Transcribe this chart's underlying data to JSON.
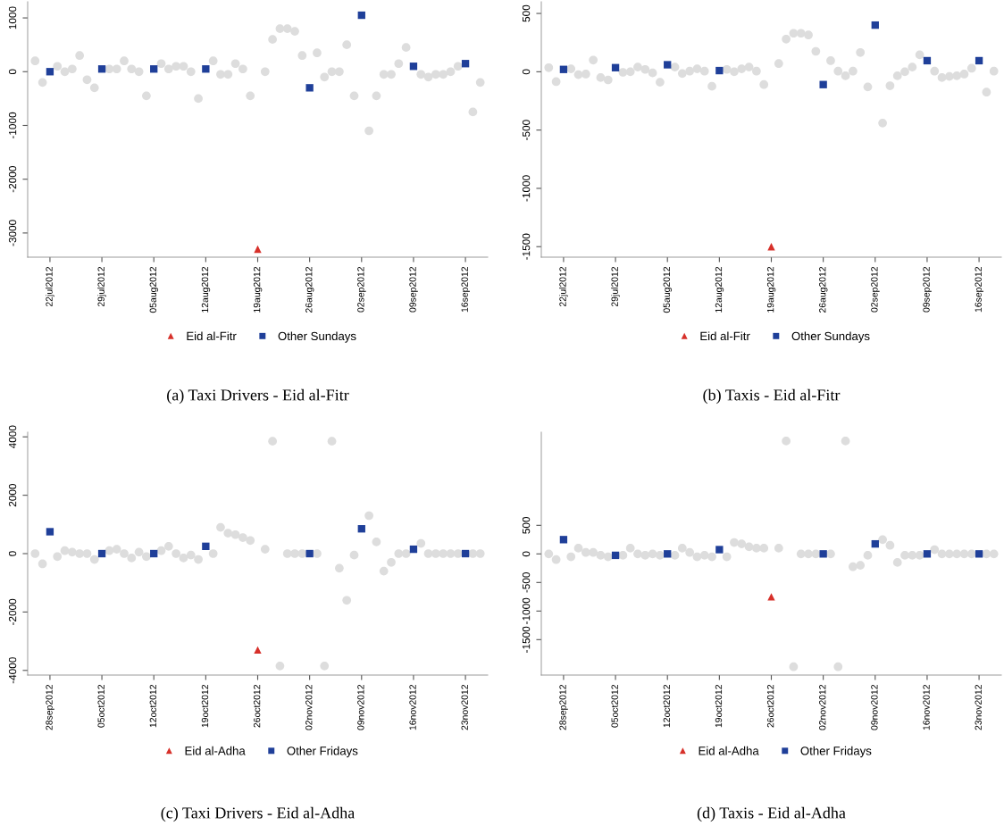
{
  "chart_data": [
    {
      "type": "scatter",
      "title": "(a) Taxi Drivers - Eid al-Fitr",
      "legend": "bottom",
      "xlim": [
        "2012-07-19",
        "2012-09-19"
      ],
      "ylim": [
        -3450,
        1300
      ],
      "xticks": [
        {
          "value": "2012-07-22",
          "label": "22jul2012"
        },
        {
          "value": "2012-07-29",
          "label": "29jul2012"
        },
        {
          "value": "2012-08-05",
          "label": "05aug2012"
        },
        {
          "value": "2012-08-12",
          "label": "12aug2012"
        },
        {
          "value": "2012-08-19",
          "label": "19aug2012"
        },
        {
          "value": "2012-08-26",
          "label": "26aug2012"
        },
        {
          "value": "2012-09-02",
          "label": "02sep2012"
        },
        {
          "value": "2012-09-09",
          "label": "09sep2012"
        },
        {
          "value": "2012-09-16",
          "label": "16sep2012"
        }
      ],
      "yticks": [
        -3000,
        -2000,
        -1000,
        0,
        1000
      ],
      "series": [
        {
          "color": "#dddddd",
          "marker": "circle",
          "x": [
            "2012-07-20",
            "2012-07-21",
            "2012-07-23",
            "2012-07-24",
            "2012-07-25",
            "2012-07-26",
            "2012-07-27",
            "2012-07-28",
            "2012-07-30",
            "2012-07-31",
            "2012-08-01",
            "2012-08-02",
            "2012-08-03",
            "2012-08-04",
            "2012-08-06",
            "2012-08-07",
            "2012-08-08",
            "2012-08-09",
            "2012-08-10",
            "2012-08-11",
            "2012-08-13",
            "2012-08-14",
            "2012-08-15",
            "2012-08-16",
            "2012-08-17",
            "2012-08-18",
            "2012-08-20",
            "2012-08-21",
            "2012-08-22",
            "2012-08-23",
            "2012-08-24",
            "2012-08-25",
            "2012-08-27",
            "2012-08-28",
            "2012-08-29",
            "2012-08-30",
            "2012-08-31",
            "2012-09-01",
            "2012-09-03",
            "2012-09-04",
            "2012-09-05",
            "2012-09-06",
            "2012-09-07",
            "2012-09-08",
            "2012-09-10",
            "2012-09-11",
            "2012-09-12",
            "2012-09-13",
            "2012-09-14",
            "2012-09-15",
            "2012-09-17",
            "2012-09-18"
          ],
          "values": [
            200,
            -200,
            100,
            0,
            50,
            300,
            -150,
            -300,
            50,
            50,
            200,
            50,
            0,
            -450,
            150,
            50,
            100,
            100,
            0,
            -500,
            200,
            -50,
            -50,
            150,
            50,
            -450,
            0,
            600,
            800,
            800,
            750,
            300,
            350,
            -100,
            0,
            0,
            500,
            -450,
            -1100,
            -450,
            -50,
            -50,
            150,
            450,
            -50,
            -100,
            -50,
            -50,
            0,
            100,
            -750,
            -200
          ]
        },
        {
          "name": "Eid al-Fitr",
          "color": "#d7302a",
          "marker": "triangle",
          "x": [
            "2012-08-19"
          ],
          "values": [
            -3300
          ]
        },
        {
          "name": "Other Sundays",
          "color": "#1f3f99",
          "marker": "square",
          "x": [
            "2012-07-22",
            "2012-07-29",
            "2012-08-05",
            "2012-08-12",
            "2012-08-26",
            "2012-09-02",
            "2012-09-09",
            "2012-09-16"
          ],
          "values": [
            0,
            50,
            50,
            50,
            -300,
            1050,
            100,
            150
          ]
        }
      ]
    },
    {
      "type": "scatter",
      "title": "(b) Taxis - Eid al-Fitr",
      "legend": "bottom",
      "xlim": [
        "2012-07-19",
        "2012-09-19"
      ],
      "ylim": [
        -1590,
        600
      ],
      "xticks": [
        {
          "value": "2012-07-22",
          "label": "22jul2012"
        },
        {
          "value": "2012-07-29",
          "label": "29jul2012"
        },
        {
          "value": "2012-08-05",
          "label": "05aug2012"
        },
        {
          "value": "2012-08-12",
          "label": "12aug2012"
        },
        {
          "value": "2012-08-19",
          "label": "19aug2012"
        },
        {
          "value": "2012-08-26",
          "label": "26aug2012"
        },
        {
          "value": "2012-09-02",
          "label": "02sep2012"
        },
        {
          "value": "2012-09-09",
          "label": "09sep2012"
        },
        {
          "value": "2012-09-16",
          "label": "16sep2012"
        }
      ],
      "yticks": [
        -1500,
        -1000,
        -500,
        0,
        500
      ],
      "series": [
        {
          "color": "#dddddd",
          "marker": "circle",
          "x": [
            "2012-07-20",
            "2012-07-21",
            "2012-07-23",
            "2012-07-24",
            "2012-07-25",
            "2012-07-26",
            "2012-07-27",
            "2012-07-28",
            "2012-07-30",
            "2012-07-31",
            "2012-08-01",
            "2012-08-02",
            "2012-08-03",
            "2012-08-04",
            "2012-08-06",
            "2012-08-07",
            "2012-08-08",
            "2012-08-09",
            "2012-08-10",
            "2012-08-11",
            "2012-08-13",
            "2012-08-14",
            "2012-08-15",
            "2012-08-16",
            "2012-08-17",
            "2012-08-18",
            "2012-08-20",
            "2012-08-21",
            "2012-08-22",
            "2012-08-23",
            "2012-08-24",
            "2012-08-25",
            "2012-08-27",
            "2012-08-28",
            "2012-08-29",
            "2012-08-30",
            "2012-08-31",
            "2012-09-01",
            "2012-09-03",
            "2012-09-04",
            "2012-09-05",
            "2012-09-06",
            "2012-09-07",
            "2012-09-08",
            "2012-09-10",
            "2012-09-11",
            "2012-09-12",
            "2012-09-13",
            "2012-09-14",
            "2012-09-15",
            "2012-09-17",
            "2012-09-18"
          ],
          "values": [
            35,
            -85,
            25,
            -25,
            -20,
            100,
            -50,
            -70,
            -5,
            0,
            40,
            20,
            -10,
            -90,
            40,
            -15,
            5,
            25,
            5,
            -125,
            20,
            0,
            25,
            40,
            5,
            -110,
            70,
            280,
            330,
            330,
            315,
            175,
            95,
            5,
            -35,
            5,
            165,
            -130,
            -440,
            -120,
            -35,
            0,
            40,
            145,
            5,
            -50,
            -40,
            -35,
            -20,
            30,
            -175,
            5
          ]
        },
        {
          "name": "Eid al-Fitr",
          "color": "#d7302a",
          "marker": "triangle",
          "x": [
            "2012-08-19"
          ],
          "values": [
            -1500
          ]
        },
        {
          "name": "Other Sundays",
          "color": "#1f3f99",
          "marker": "square",
          "x": [
            "2012-07-22",
            "2012-07-29",
            "2012-08-05",
            "2012-08-12",
            "2012-08-26",
            "2012-09-02",
            "2012-09-09",
            "2012-09-16"
          ],
          "values": [
            20,
            35,
            60,
            10,
            -110,
            400,
            95,
            95
          ]
        }
      ]
    },
    {
      "type": "scatter",
      "title": "(c) Taxi Drivers - Eid al-Adha",
      "legend": "bottom",
      "xlim": [
        "2012-09-25",
        "2012-11-26"
      ],
      "ylim": [
        -4160,
        4160
      ],
      "xticks": [
        {
          "value": "2012-09-28",
          "label": "28sep2012"
        },
        {
          "value": "2012-10-05",
          "label": "05oct2012"
        },
        {
          "value": "2012-10-12",
          "label": "12oct2012"
        },
        {
          "value": "2012-10-19",
          "label": "19oct2012"
        },
        {
          "value": "2012-10-26",
          "label": "26oct2012"
        },
        {
          "value": "2012-11-02",
          "label": "02nov2012"
        },
        {
          "value": "2012-11-09",
          "label": "09nov2012"
        },
        {
          "value": "2012-11-16",
          "label": "16nov2012"
        },
        {
          "value": "2012-11-23",
          "label": "23nov2012"
        }
      ],
      "yticks": [
        -4000,
        -2000,
        0,
        2000,
        4000
      ],
      "series": [
        {
          "color": "#dddddd",
          "marker": "circle",
          "x": [
            "2012-09-26",
            "2012-09-27",
            "2012-09-29",
            "2012-09-30",
            "2012-10-01",
            "2012-10-02",
            "2012-10-03",
            "2012-10-04",
            "2012-10-06",
            "2012-10-07",
            "2012-10-08",
            "2012-10-09",
            "2012-10-10",
            "2012-10-11",
            "2012-10-13",
            "2012-10-14",
            "2012-10-15",
            "2012-10-16",
            "2012-10-17",
            "2012-10-18",
            "2012-10-20",
            "2012-10-21",
            "2012-10-22",
            "2012-10-23",
            "2012-10-24",
            "2012-10-25",
            "2012-10-27",
            "2012-10-28",
            "2012-10-29",
            "2012-10-30",
            "2012-10-31",
            "2012-11-01",
            "2012-11-03",
            "2012-11-04",
            "2012-11-05",
            "2012-11-06",
            "2012-11-07",
            "2012-11-08",
            "2012-11-10",
            "2012-11-11",
            "2012-11-12",
            "2012-11-13",
            "2012-11-14",
            "2012-11-15",
            "2012-11-17",
            "2012-11-18",
            "2012-11-19",
            "2012-11-20",
            "2012-11-21",
            "2012-11-22",
            "2012-11-24",
            "2012-11-25"
          ],
          "values": [
            0,
            -350,
            -100,
            100,
            50,
            0,
            0,
            -200,
            100,
            150,
            0,
            -150,
            50,
            -100,
            100,
            250,
            0,
            -150,
            -50,
            -200,
            0,
            900,
            700,
            650,
            550,
            450,
            150,
            3850,
            -3850,
            0,
            0,
            0,
            0,
            -3850,
            3850,
            -500,
            -1600,
            -50,
            1300,
            400,
            -600,
            -300,
            0,
            0,
            350,
            0,
            0,
            0,
            0,
            0,
            0,
            0
          ]
        },
        {
          "name": "Eid al-Adha",
          "color": "#d7302a",
          "marker": "triangle",
          "x": [
            "2012-10-26"
          ],
          "values": [
            -3300
          ]
        },
        {
          "name": "Other Fridays",
          "color": "#1f3f99",
          "marker": "square",
          "x": [
            "2012-09-28",
            "2012-10-05",
            "2012-10-12",
            "2012-10-19",
            "2012-11-02",
            "2012-11-09",
            "2012-11-16",
            "2012-11-23"
          ],
          "values": [
            750,
            0,
            0,
            250,
            0,
            850,
            150,
            0
          ]
        }
      ]
    },
    {
      "type": "scatter",
      "title": "(d) Taxis - Eid al-Adha",
      "legend": "bottom",
      "xlim": [
        "2012-09-25",
        "2012-11-26"
      ],
      "ylim": [
        -2120,
        2130
      ],
      "xticks": [
        {
          "value": "2012-09-28",
          "label": "28sep2012"
        },
        {
          "value": "2012-10-05",
          "label": "05oct2012"
        },
        {
          "value": "2012-10-12",
          "label": "12oct2012"
        },
        {
          "value": "2012-10-19",
          "label": "19oct2012"
        },
        {
          "value": "2012-10-26",
          "label": "26oct2012"
        },
        {
          "value": "2012-11-02",
          "label": "02nov2012"
        },
        {
          "value": "2012-11-09",
          "label": "09nov2012"
        },
        {
          "value": "2012-11-16",
          "label": "16nov2012"
        },
        {
          "value": "2012-11-23",
          "label": "23nov2012"
        }
      ],
      "yticks": [
        -1500,
        -1000,
        -500,
        0,
        500
      ],
      "series": [
        {
          "color": "#dddddd",
          "marker": "circle",
          "x": [
            "2012-09-26",
            "2012-09-27",
            "2012-09-29",
            "2012-09-30",
            "2012-10-01",
            "2012-10-02",
            "2012-10-03",
            "2012-10-04",
            "2012-10-06",
            "2012-10-07",
            "2012-10-08",
            "2012-10-09",
            "2012-10-10",
            "2012-10-11",
            "2012-10-13",
            "2012-10-14",
            "2012-10-15",
            "2012-10-16",
            "2012-10-17",
            "2012-10-18",
            "2012-10-20",
            "2012-10-21",
            "2012-10-22",
            "2012-10-23",
            "2012-10-24",
            "2012-10-25",
            "2012-10-27",
            "2012-10-28",
            "2012-10-29",
            "2012-10-30",
            "2012-10-31",
            "2012-11-01",
            "2012-11-03",
            "2012-11-04",
            "2012-11-05",
            "2012-11-06",
            "2012-11-07",
            "2012-11-08",
            "2012-11-10",
            "2012-11-11",
            "2012-11-12",
            "2012-11-13",
            "2012-11-14",
            "2012-11-15",
            "2012-11-17",
            "2012-11-18",
            "2012-11-19",
            "2012-11-20",
            "2012-11-21",
            "2012-11-22",
            "2012-11-24",
            "2012-11-25"
          ],
          "values": [
            0,
            -100,
            -50,
            100,
            25,
            25,
            -25,
            -50,
            -25,
            100,
            0,
            -25,
            0,
            -25,
            -25,
            100,
            25,
            -50,
            -25,
            -50,
            -50,
            200,
            175,
            125,
            100,
            100,
            100,
            1975,
            -1975,
            0,
            0,
            0,
            0,
            -1975,
            1975,
            -225,
            -200,
            -25,
            250,
            150,
            -150,
            -25,
            -25,
            -25,
            75,
            0,
            0,
            0,
            0,
            0,
            0,
            0
          ]
        },
        {
          "name": "Eid al-Adha",
          "color": "#d7302a",
          "marker": "triangle",
          "x": [
            "2012-10-26"
          ],
          "values": [
            -750
          ]
        },
        {
          "name": "Other Fridays",
          "color": "#1f3f99",
          "marker": "square",
          "x": [
            "2012-09-28",
            "2012-10-05",
            "2012-10-12",
            "2012-10-19",
            "2012-11-02",
            "2012-11-09",
            "2012-11-16",
            "2012-11-23"
          ],
          "values": [
            250,
            -25,
            0,
            75,
            0,
            175,
            0,
            0
          ]
        }
      ]
    }
  ]
}
